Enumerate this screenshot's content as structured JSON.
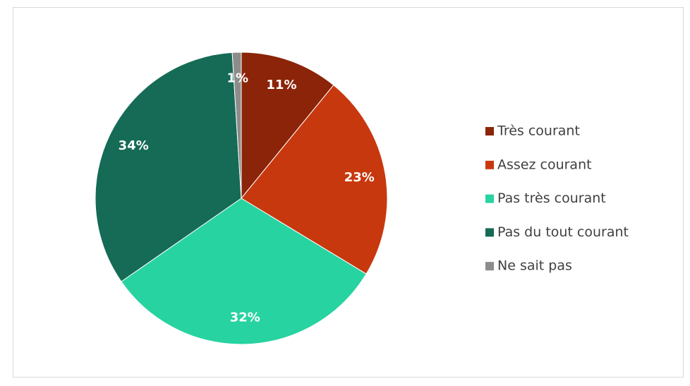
{
  "chart_data": {
    "type": "pie",
    "categories": [
      "Très courant",
      "Assez courant",
      "Pas très courant",
      "Pas du tout courant",
      "Ne sait pas"
    ],
    "values": [
      11,
      23,
      32,
      34,
      1
    ],
    "value_labels": [
      "11%",
      "23%",
      "32%",
      "34%",
      "1%"
    ],
    "colors": [
      "#8b2408",
      "#c8380e",
      "#27d3a0",
      "#156b55",
      "#8c8c8c"
    ],
    "legend": "right"
  }
}
